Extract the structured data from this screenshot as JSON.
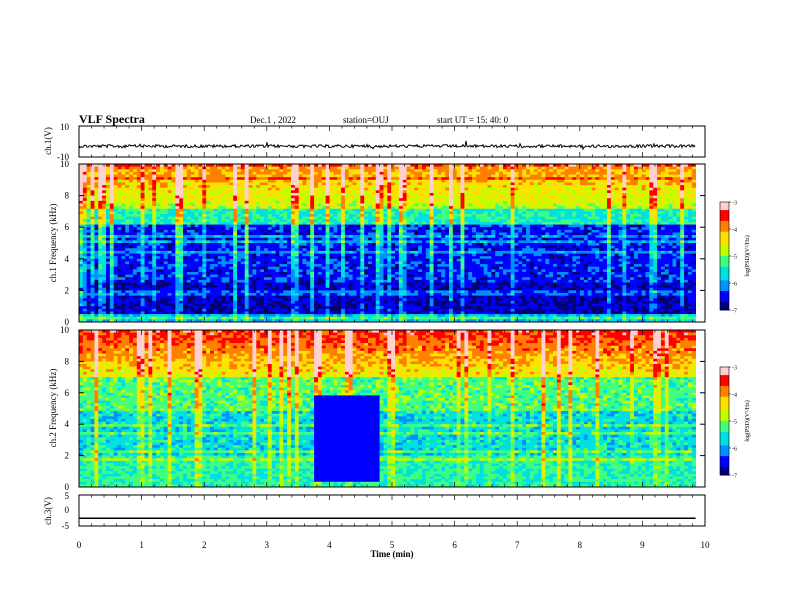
{
  "header": {
    "title": "VLF Spectra",
    "date": "Dec.1 , 2022",
    "station": "station=OUJ",
    "start": "start UT =  15: 40: 0"
  },
  "chart_data": [
    {
      "type": "line",
      "title": "",
      "ylabel": "ch.1(V)",
      "ylim": [
        -10,
        10
      ],
      "yticks": [
        "10",
        "-10"
      ],
      "trace_level": -3.0,
      "xlim": [
        0,
        10
      ]
    },
    {
      "type": "heatmap",
      "ylabel": "ch.1 Frequency (kHz)",
      "ylim": [
        0,
        10
      ],
      "yticks": [
        "0",
        "2",
        "4",
        "6",
        "8",
        "10"
      ],
      "colorbar": {
        "label": "log(PSD)(V²/Hz)",
        "range": [
          -7,
          -3
        ],
        "ticks": [
          "-3",
          "-4",
          "-5",
          "-6",
          "-7"
        ]
      }
    },
    {
      "type": "heatmap",
      "ylabel": "ch.2 Frequency (kHz)",
      "ylim": [
        0,
        10
      ],
      "yticks": [
        "0",
        "2",
        "4",
        "6",
        "8",
        "10"
      ],
      "quiet_interval_min": [
        3.7,
        4.8
      ],
      "colorbar": {
        "label": "log(PSD)(V²/Hz)",
        "range": [
          -7,
          -3
        ],
        "ticks": [
          "-3",
          "-4",
          "-5",
          "-6",
          "-7"
        ]
      }
    },
    {
      "type": "line",
      "ylabel": "ch.3(V)",
      "ylim": [
        -5,
        5
      ],
      "yticks": [
        "5",
        "0",
        "-5"
      ],
      "trace_level": -2.5,
      "xlim": [
        0,
        10
      ]
    }
  ],
  "x_axis": {
    "label": "Time (min)",
    "ticks": [
      "0",
      "1",
      "2",
      "3",
      "4",
      "5",
      "6",
      "7",
      "8",
      "9",
      "10"
    ],
    "data_end_min": 9.85
  },
  "colors": {
    "colormap": [
      "#00007a",
      "#0000ff",
      "#0090ff",
      "#00e0e0",
      "#40ff80",
      "#c0ff00",
      "#ffe000",
      "#ff8000",
      "#ff0000",
      "#ffd0d0"
    ]
  }
}
